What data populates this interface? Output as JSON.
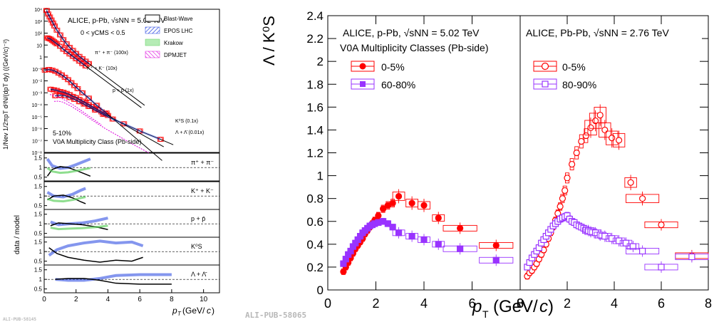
{
  "watermarks": {
    "left": "ALI-PUB-58145",
    "right": "ALI-PUB-58065"
  },
  "colors": {
    "red": "#ff0000",
    "violet": "#9933ff",
    "blue": "#1f3fe0",
    "green": "#5fd05f",
    "magenta": "#dd00dd",
    "black": "#000000"
  },
  "chart_data": [
    {
      "type": "scatter",
      "panel": "spectra",
      "title": "ALICE, p-Pb, √sNN = 5.02 TeV",
      "subtitle": "0 < yCMS < 0.5",
      "note": [
        "5-10%",
        "V0A Multiplicity Class (Pb-side)"
      ],
      "ylabel": "1/Nev 1/2πpT d²N/(dpT dy) ((GeV/c)⁻²)",
      "y_scale": "log",
      "xlim": [
        0,
        11
      ],
      "ylim_exp": [
        -8,
        4
      ],
      "y_ticks": [
        "10⁴",
        "10³",
        "10²",
        "10",
        "1",
        "10⁻¹",
        "10⁻²",
        "10⁻³",
        "10⁻⁴",
        "10⁻⁵",
        "10⁻⁶",
        "10⁻⁷",
        "10⁻⁸"
      ],
      "legend": [
        "Blast-Wave",
        "EPOS LHC",
        "Krakow",
        "DPMJET"
      ],
      "species_labels": [
        "π⁺ + π⁻ (100x)",
        "K⁺ + K⁻ (10x)",
        "p + p̄ (1x)",
        "K⁰S (0.1x)",
        "Λ + Λ̄ (0.01x)"
      ],
      "series": [
        {
          "name": "π⁺ + π⁻ (100x)",
          "x": [
            0.15,
            0.25,
            0.35,
            0.45,
            0.55,
            0.65,
            0.8,
            1.0,
            1.2,
            1.4,
            1.6,
            1.8,
            2.0,
            2.2,
            2.4,
            2.6,
            2.8
          ],
          "log10_y": [
            3.9,
            3.6,
            3.35,
            3.1,
            2.85,
            2.6,
            2.25,
            1.85,
            1.45,
            1.1,
            0.8,
            0.55,
            0.3,
            0.05,
            -0.15,
            -0.35,
            -0.55
          ]
        },
        {
          "name": "K⁺ + K⁻ (10x)",
          "x": [
            0.2,
            0.3,
            0.4,
            0.5,
            0.6,
            0.7,
            0.8,
            1.0,
            1.2,
            1.4,
            1.6,
            1.8,
            2.0,
            2.2,
            2.4,
            2.6
          ],
          "log10_y": [
            1.6,
            1.55,
            1.5,
            1.4,
            1.3,
            1.2,
            1.1,
            0.9,
            0.65,
            0.45,
            0.25,
            0.05,
            -0.15,
            -0.35,
            -0.55,
            -0.75
          ]
        },
        {
          "name": "K⁰S (0.1x)",
          "x": [
            0.05,
            0.3,
            0.5,
            0.7,
            0.9,
            1.1,
            1.3,
            1.5,
            1.7,
            1.9,
            2.1,
            2.4,
            2.8,
            3.3,
            3.9
          ],
          "log10_y": [
            -1.1,
            -1.05,
            -1.1,
            -1.2,
            -1.35,
            -1.5,
            -1.7,
            -1.9,
            -2.15,
            -2.4,
            -2.65,
            -3.0,
            -3.45,
            -4.05,
            -4.7
          ]
        },
        {
          "name": "p + p̄ (1x)",
          "x": [
            0.4,
            0.6,
            0.8,
            1.0,
            1.2,
            1.4,
            1.6,
            1.8,
            2.0,
            2.2,
            2.4,
            2.6,
            2.8,
            3.0,
            3.2,
            3.4,
            3.6,
            3.8,
            4.0
          ],
          "log10_y": [
            -2.7,
            -2.75,
            -2.8,
            -2.9,
            -2.95,
            -3.05,
            -3.15,
            -3.3,
            -3.4,
            -3.55,
            -3.7,
            -3.85,
            -4.0,
            -4.15,
            -4.3,
            -4.45,
            -4.6,
            -4.75,
            -4.9
          ]
        },
        {
          "name": "Λ + Λ̄ (0.01x)",
          "x": [
            0.7,
            1.0,
            1.3,
            1.6,
            1.9,
            2.2,
            2.5,
            2.8,
            3.2,
            3.7,
            4.3,
            5.0,
            6.0,
            7.3
          ],
          "log10_y": [
            -3.25,
            -3.2,
            -3.25,
            -3.4,
            -3.55,
            -3.75,
            -3.95,
            -4.15,
            -4.45,
            -4.8,
            -5.2,
            -5.6,
            -6.2,
            -6.9
          ]
        }
      ]
    },
    {
      "type": "line",
      "panel": "ratios",
      "ylabel": "data / model",
      "xlabel": "pT (GeV/c)",
      "xlim": [
        0,
        11
      ],
      "x_ticks": [
        "0",
        "2",
        "4",
        "6",
        "8",
        "10"
      ],
      "subpanels": [
        {
          "label": "π⁺ + π⁻",
          "y_ticks": [
            "0.5",
            "1",
            "1.5"
          ]
        },
        {
          "label": "K⁺ + K⁻",
          "y_ticks": [
            "0.5",
            "1",
            "1.5"
          ]
        },
        {
          "label": "p + p̄",
          "y_ticks": [
            "0.5",
            "1",
            "1.5"
          ]
        },
        {
          "label": "K⁰S",
          "y_ticks": [
            "0.5",
            "1",
            "1.5"
          ]
        },
        {
          "label": "Λ + Λ̄",
          "y_ticks": [
            "0.5",
            "1",
            "1.5"
          ]
        }
      ]
    },
    {
      "type": "scatter",
      "panel": "Lambda/K0S vs pT",
      "ylabel": "Λ / K⁰S",
      "xlabel": "pT (GeV/c)",
      "ylim": [
        0,
        2.4
      ],
      "y_ticks": [
        "0",
        "0.2",
        "0.4",
        "0.6",
        "0.8",
        "1",
        "1.2",
        "1.4",
        "1.6",
        "1.8",
        "2",
        "2.2",
        "2.4"
      ],
      "subplots": [
        {
          "title": "ALICE, p-Pb, √sNN = 5.02 TeV",
          "subtitle": "V0A Multiplicity Classes (Pb-side)",
          "xlim": [
            0,
            8
          ],
          "x_ticks": [
            "0",
            "2",
            "4",
            "6",
            "8"
          ],
          "series": [
            {
              "name": "0-5%",
              "marker": "filled-circle",
              "x": [
                0.65,
                0.75,
                0.85,
                0.95,
                1.05,
                1.15,
                1.25,
                1.35,
                1.45,
                1.55,
                1.65,
                1.75,
                1.85,
                1.95,
                2.1,
                2.3,
                2.5,
                2.7,
                2.95,
                3.5,
                4.0,
                4.6,
                5.5,
                7.0
              ],
              "y": [
                0.16,
                0.2,
                0.24,
                0.28,
                0.32,
                0.36,
                0.39,
                0.42,
                0.45,
                0.49,
                0.52,
                0.55,
                0.58,
                0.61,
                0.65,
                0.71,
                0.74,
                0.76,
                0.82,
                0.76,
                0.74,
                0.63,
                0.54,
                0.39
              ]
            },
            {
              "name": "60-80%",
              "marker": "filled-square",
              "x": [
                0.65,
                0.75,
                0.85,
                0.95,
                1.05,
                1.15,
                1.25,
                1.35,
                1.45,
                1.55,
                1.65,
                1.75,
                1.85,
                1.95,
                2.1,
                2.3,
                2.5,
                2.7,
                2.95,
                3.5,
                4.0,
                4.6,
                5.5,
                7.0
              ],
              "y": [
                0.23,
                0.27,
                0.31,
                0.34,
                0.38,
                0.41,
                0.44,
                0.47,
                0.5,
                0.52,
                0.54,
                0.56,
                0.57,
                0.58,
                0.59,
                0.6,
                0.58,
                0.55,
                0.5,
                0.47,
                0.44,
                0.4,
                0.36,
                0.26
              ]
            }
          ]
        },
        {
          "title": "ALICE, Pb-Pb, √sNN = 2.76 TeV",
          "xlim": [
            0,
            8
          ],
          "x_ticks": [
            "0",
            "2",
            "4",
            "6",
            "8"
          ],
          "series": [
            {
              "name": "0-5%",
              "marker": "open-circle",
              "x": [
                0.3,
                0.4,
                0.5,
                0.6,
                0.7,
                0.8,
                0.9,
                1.0,
                1.1,
                1.2,
                1.3,
                1.4,
                1.5,
                1.6,
                1.7,
                1.8,
                1.9,
                2.0,
                2.2,
                2.4,
                2.6,
                2.8,
                3.0,
                3.2,
                3.4,
                3.6,
                3.9,
                4.2,
                4.7,
                5.2,
                6.0,
                7.3
              ],
              "y": [
                0.12,
                0.15,
                0.17,
                0.2,
                0.23,
                0.27,
                0.31,
                0.35,
                0.4,
                0.45,
                0.5,
                0.55,
                0.61,
                0.67,
                0.73,
                0.8,
                0.87,
                0.98,
                1.1,
                1.2,
                1.3,
                1.35,
                1.42,
                1.48,
                1.53,
                1.4,
                1.33,
                1.31,
                0.94,
                0.8,
                0.57,
                0.3
              ]
            },
            {
              "name": "80-90%",
              "marker": "open-square",
              "x": [
                0.3,
                0.4,
                0.5,
                0.6,
                0.7,
                0.8,
                0.9,
                1.0,
                1.1,
                1.2,
                1.3,
                1.4,
                1.5,
                1.6,
                1.7,
                1.8,
                1.9,
                2.0,
                2.1,
                2.2,
                2.3,
                2.4,
                2.5,
                2.6,
                2.7,
                2.8,
                2.9,
                3.0,
                3.2,
                3.4,
                3.6,
                3.9,
                4.2,
                4.5,
                4.8,
                5.2,
                6.0,
                7.3
              ],
              "y": [
                0.2,
                0.24,
                0.28,
                0.31,
                0.34,
                0.37,
                0.41,
                0.44,
                0.47,
                0.5,
                0.53,
                0.56,
                0.58,
                0.6,
                0.62,
                0.63,
                0.64,
                0.65,
                0.62,
                0.6,
                0.59,
                0.57,
                0.56,
                0.55,
                0.54,
                0.53,
                0.52,
                0.51,
                0.5,
                0.48,
                0.47,
                0.45,
                0.43,
                0.41,
                0.38,
                0.34,
                0.2,
                0.29
              ]
            }
          ]
        }
      ]
    }
  ]
}
